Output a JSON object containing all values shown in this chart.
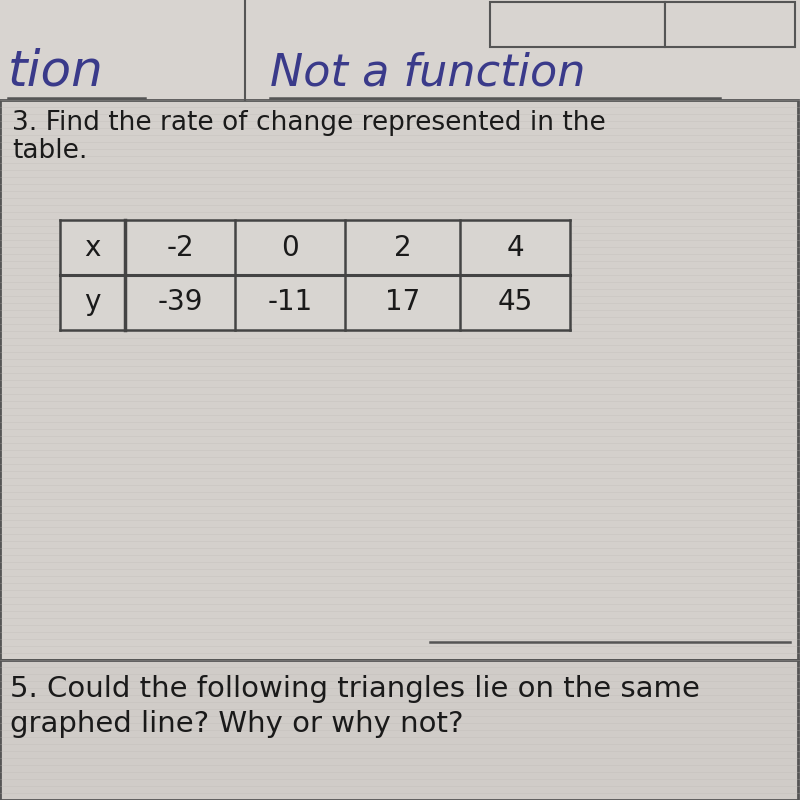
{
  "bg_color": "#d6d2ce",
  "bg_color2": "#ccc8c4",
  "header_text_left": "tion",
  "header_text_right": "Not a function",
  "question_text_line1": "3. Find the rate of change represented in the",
  "question_text_line2": "table.",
  "table_headers": [
    "x",
    "-2",
    "0",
    "2",
    "4"
  ],
  "table_row2": [
    "y",
    "-39",
    "-11",
    "17",
    "45"
  ],
  "bottom_text_line1": "5. Could the following triangles lie on the same",
  "bottom_text_line2": "graphed line? Why or why not?",
  "font_size_handwrite": 36,
  "font_size_question": 19,
  "font_size_table": 20,
  "font_size_bottom": 21,
  "text_color": "#1a1a1a",
  "handwrite_color": "#3a3a8a",
  "table_border_color": "#444444",
  "box_border_color": "#555555",
  "line_color": "#555555",
  "top_rect_color": "#c8c4c0"
}
